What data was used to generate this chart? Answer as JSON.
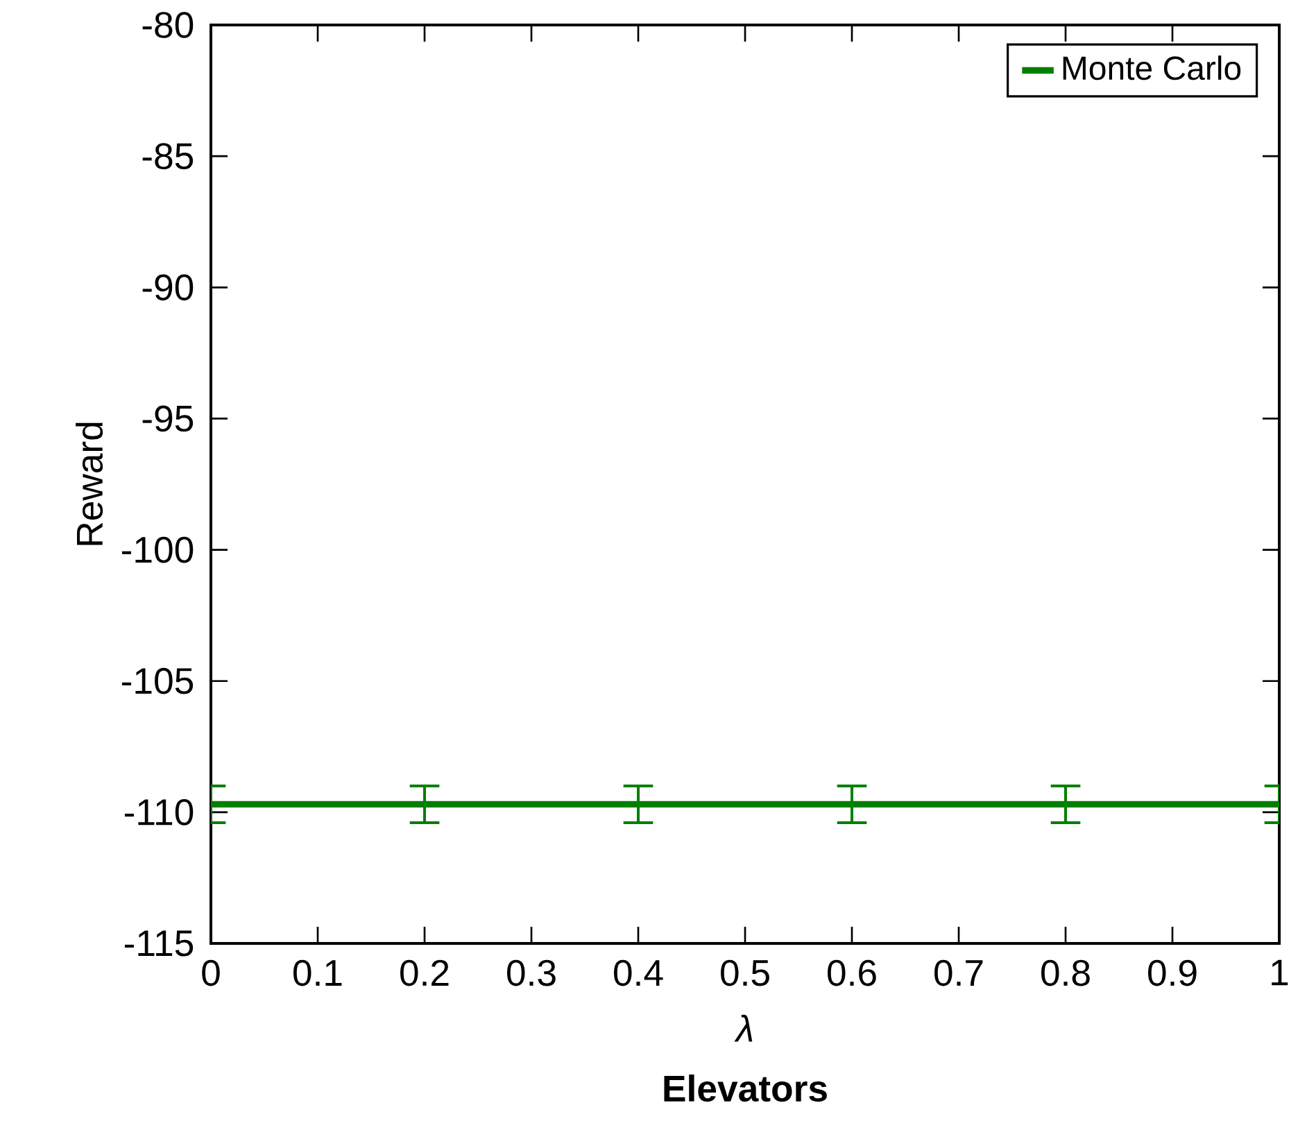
{
  "chart_data": {
    "type": "line",
    "title": "**Elevators**",
    "xlabel": "*λ*",
    "ylabel": "Reward",
    "x": [
      0,
      0.2,
      0.4,
      0.6,
      0.8,
      1
    ],
    "series": [
      {
        "name": "Monte Carlo",
        "color": "#008000",
        "values": [
          -109.7,
          -109.7,
          -109.7,
          -109.7,
          -109.7,
          -109.7
        ],
        "errors": [
          0.7,
          0.7,
          0.7,
          0.7,
          0.7,
          0.7
        ]
      }
    ],
    "xlim": [
      0,
      1
    ],
    "xticks": [
      0,
      0.1,
      0.2,
      0.3,
      0.4,
      0.5,
      0.6,
      0.7,
      0.8,
      0.9,
      1
    ],
    "ylim": [
      -115,
      -80
    ],
    "yticks": [
      -115,
      -110,
      -105,
      -100,
      -95,
      -90,
      -85,
      -80
    ],
    "legend": "top right",
    "marker": "none",
    "line_style": "solid",
    "grid": false
  }
}
